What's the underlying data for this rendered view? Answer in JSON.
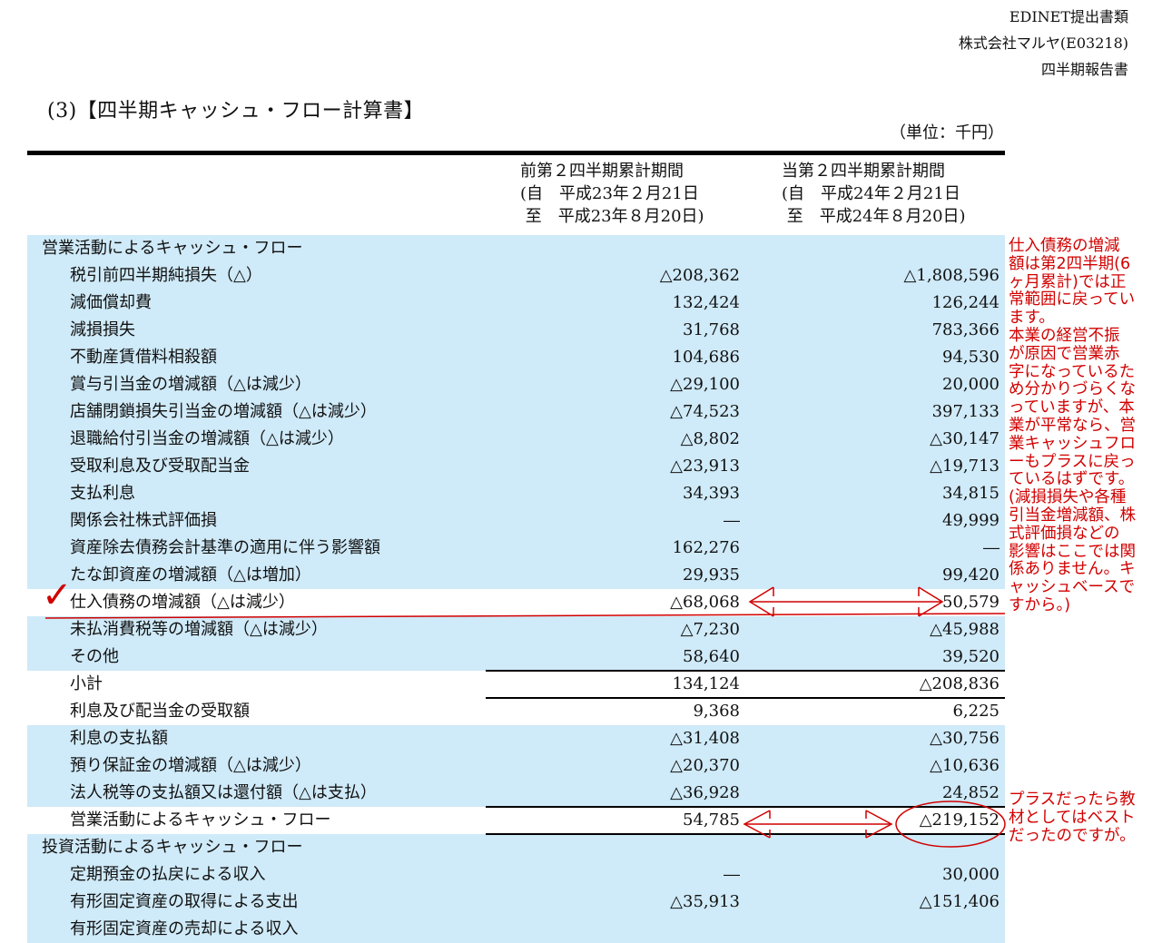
{
  "header": {
    "line1": "EDINET提出書類",
    "line2": "株式会社マルヤ(E03218)",
    "line3": "四半期報告書"
  },
  "title": "(3)【四半期キャッシュ・フロー計算書】",
  "unit": "（単位：千円）",
  "columns": {
    "prev": "前第２四半期累計期間\n(自　平成23年２月21日\n 至　平成23年８月20日)",
    "curr": "当第２四半期累計期間\n(自　平成24年２月21日\n 至　平成24年８月20日)"
  },
  "rows": [
    {
      "label": "営業活動によるキャッシュ・フロー",
      "prev": "",
      "curr": "",
      "section": true
    },
    {
      "label": "税引前四半期純損失（△）",
      "prev": "△208,362",
      "curr": "△1,808,596"
    },
    {
      "label": "減価償却費",
      "prev": "132,424",
      "curr": "126,244"
    },
    {
      "label": "減損損失",
      "prev": "31,768",
      "curr": "783,366"
    },
    {
      "label": "不動産賃借料相殺額",
      "prev": "104,686",
      "curr": "94,530"
    },
    {
      "label": "賞与引当金の増減額（△は減少）",
      "prev": "△29,100",
      "curr": "20,000"
    },
    {
      "label": "店舗閉鎖損失引当金の増減額（△は減少）",
      "prev": "△74,523",
      "curr": "397,133"
    },
    {
      "label": "退職給付引当金の増減額（△は減少）",
      "prev": "△8,802",
      "curr": "△30,147"
    },
    {
      "label": "受取利息及び受取配当金",
      "prev": "△23,913",
      "curr": "△19,713"
    },
    {
      "label": "支払利息",
      "prev": "34,393",
      "curr": "34,815"
    },
    {
      "label": "関係会社株式評価損",
      "prev": "―",
      "curr": "49,999"
    },
    {
      "label": "資産除去債務会計基準の適用に伴う影響額",
      "prev": "162,276",
      "curr": "―"
    },
    {
      "label": "たな卸資産の増減額（△は増加）",
      "prev": "29,935",
      "curr": "99,420"
    },
    {
      "label": "仕入債務の増減額（△は減少）",
      "prev": "△68,068",
      "curr": "50,579"
    },
    {
      "label": "未払消費税等の増減額（△は減少）",
      "prev": "△7,230",
      "curr": "△45,988"
    },
    {
      "label": "その他",
      "prev": "58,640",
      "curr": "39,520"
    },
    {
      "label": "小計",
      "prev": "134,124",
      "curr": "△208,836"
    },
    {
      "label": "利息及び配当金の受取額",
      "prev": "9,368",
      "curr": "6,225"
    },
    {
      "label": "利息の支払額",
      "prev": "△31,408",
      "curr": "△30,756"
    },
    {
      "label": "預り保証金の増減額（△は減少）",
      "prev": "△20,370",
      "curr": "△10,636"
    },
    {
      "label": "法人税等の支払額又は還付額（△は支払）",
      "prev": "△36,928",
      "curr": "24,852"
    },
    {
      "label": "営業活動によるキャッシュ・フロー",
      "prev": "54,785",
      "curr": "△219,152"
    },
    {
      "label": "投資活動によるキャッシュ・フロー",
      "prev": "",
      "curr": "",
      "section": true
    },
    {
      "label": "定期預金の払戻による収入",
      "prev": "―",
      "curr": "30,000"
    },
    {
      "label": "有形固定資産の取得による支出",
      "prev": "△35,913",
      "curr": "△151,406"
    },
    {
      "label": "有形固定資産の売却による収入",
      "prev": "",
      "curr": ""
    }
  ],
  "annotations": {
    "note1": "仕入債務の増減\n額は第2四半期(6\nヶ月累計)では正\n常範囲に戻ってい\nます。\n本業の経営不振\nが原因で営業赤\n字になっているた\nめ分かりづらくな\nっていますが、本\n業が平常なら、営\n業キャッシュフロ\nーもプラスに戻っ\nているはずです。\n(減損損失や各種\n引当金増減額、株\n式評価損などの\n影響はここでは関\n係ありません。キ\nャッシュベースで\nすから。)",
    "note2": "プラスだったら教\n材としてはベスト\nだったのですが。",
    "check_mark": "✓",
    "annotation_color": "#d10000"
  },
  "colors": {
    "row_shade": "#cfeaf8",
    "rule": "#000000"
  }
}
